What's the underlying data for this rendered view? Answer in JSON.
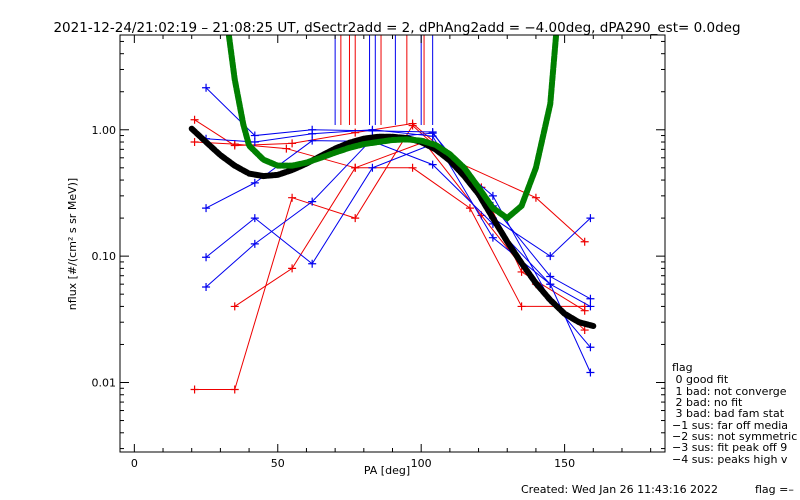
{
  "chart_data": {
    "type": "scatter",
    "title": "2021-12-24/21:02:19 – 21:08:25 UT, dSectr2add = 2, dPhAng2add = −4.00deg, dPA290_est=   0.0deg",
    "xlabel": "PA [deg]",
    "ylabel": "nflux [#/(cm² s sr MeV)]",
    "xlim": [
      -5,
      185
    ],
    "ylim_log10": [
      -2.55,
      0.75
    ],
    "x_log": false,
    "y_log": true,
    "x_ticks": [
      0,
      50,
      100,
      150
    ],
    "x_tick_labels": [
      "0",
      "50",
      "100",
      "150"
    ],
    "y_ticks": [
      0.01,
      0.1,
      1.0
    ],
    "y_tick_labels": [
      "0.01",
      "0.10",
      "1.00"
    ],
    "grid": false,
    "colors": {
      "red": "#ee0000",
      "blue": "#0000ee",
      "fit_black": "#000000",
      "fit_green": "#22ee22"
    },
    "vertical_markers": [
      {
        "color": "red",
        "x": [
          72,
          75,
          77,
          86,
          95,
          101
        ]
      },
      {
        "color": "blue",
        "x": [
          70,
          82,
          84,
          91,
          100,
          104
        ]
      }
    ],
    "series": [
      {
        "color": "red",
        "x": [
          21,
          35,
          55,
          77,
          97,
          113,
          140,
          157
        ],
        "y": [
          1.2,
          0.75,
          0.78,
          0.95,
          1.12,
          0.55,
          0.29,
          0.13
        ]
      },
      {
        "color": "red",
        "x": [
          21,
          35,
          53,
          77,
          97,
          117,
          135,
          157
        ],
        "y": [
          0.8,
          0.77,
          0.71,
          0.5,
          0.5,
          0.24,
          0.04,
          0.04
        ]
      },
      {
        "color": "red",
        "x": [
          21,
          35,
          55,
          77,
          97,
          121,
          135,
          157
        ],
        "y": [
          0.0088,
          0.0088,
          0.29,
          0.2,
          1.08,
          0.35,
          0.075,
          0.037
        ]
      },
      {
        "color": "red",
        "x": [
          35,
          55,
          77,
          101,
          121,
          140,
          157
        ],
        "y": [
          0.04,
          0.08,
          0.5,
          0.8,
          0.21,
          0.06,
          0.026
        ]
      },
      {
        "color": "blue",
        "x": [
          25,
          42,
          62,
          83,
          104,
          125,
          145,
          159
        ],
        "y": [
          2.15,
          0.9,
          1.0,
          0.98,
          0.96,
          0.2,
          0.1,
          0.2
        ]
      },
      {
        "color": "blue",
        "x": [
          25,
          42,
          62,
          83,
          104,
          125,
          145,
          159
        ],
        "y": [
          0.85,
          0.8,
          0.93,
          1.0,
          0.89,
          0.14,
          0.06,
          0.04
        ]
      },
      {
        "color": "blue",
        "x": [
          25,
          42,
          62,
          83,
          104,
          125,
          145,
          159
        ],
        "y": [
          0.24,
          0.38,
          0.82,
          0.81,
          0.53,
          0.18,
          0.06,
          0.012
        ]
      },
      {
        "color": "blue",
        "x": [
          25,
          42,
          62,
          83,
          104,
          125,
          145,
          159
        ],
        "y": [
          0.098,
          0.2,
          0.087,
          0.5,
          0.77,
          0.3,
          0.045,
          0.019
        ]
      },
      {
        "color": "blue",
        "x": [
          25,
          42,
          62,
          83,
          104,
          125,
          145,
          159
        ],
        "y": [
          0.057,
          0.125,
          0.27,
          0.85,
          0.94,
          0.25,
          0.069,
          0.046
        ]
      }
    ],
    "fits": [
      {
        "color": "black",
        "x": [
          20,
          25,
          30,
          35,
          40,
          45,
          50,
          55,
          60,
          65,
          70,
          75,
          80,
          85,
          90,
          95,
          100,
          105,
          110,
          115,
          120,
          125,
          130,
          135,
          140,
          145,
          150,
          155,
          160
        ],
        "y": [
          1.02,
          0.8,
          0.63,
          0.52,
          0.45,
          0.43,
          0.44,
          0.48,
          0.54,
          0.62,
          0.71,
          0.79,
          0.85,
          0.88,
          0.88,
          0.86,
          0.8,
          0.7,
          0.57,
          0.43,
          0.31,
          0.2,
          0.13,
          0.088,
          0.061,
          0.045,
          0.035,
          0.03,
          0.028
        ]
      },
      {
        "color": "green",
        "x": [
          33,
          35,
          38,
          40,
          45,
          50,
          55,
          60,
          65,
          70,
          75,
          80,
          85,
          90,
          95,
          100,
          105,
          110,
          115,
          120,
          125,
          130,
          135,
          140,
          145,
          147
        ],
        "y": [
          5.5,
          2.5,
          1.1,
          0.75,
          0.58,
          0.52,
          0.52,
          0.55,
          0.6,
          0.66,
          0.72,
          0.77,
          0.8,
          0.83,
          0.84,
          0.82,
          0.76,
          0.64,
          0.5,
          0.35,
          0.24,
          0.2,
          0.25,
          0.5,
          1.6,
          5.5
        ]
      }
    ],
    "legend": {
      "title": "flag",
      "entries": [
        " 0 good fit",
        " 1 bad: not converge",
        " 2 bad: no fit",
        " 3 bad: bad fam stat",
        "−1 sus: far off media",
        "−2 sus: not symmetric",
        "−3 sus: fit peak off 9",
        "−4 sus: peaks high v"
      ],
      "placement": "right"
    },
    "footer": {
      "created": "Created: Wed Jan 26 11:43:16 2022",
      "flag": "flag =–"
    }
  }
}
